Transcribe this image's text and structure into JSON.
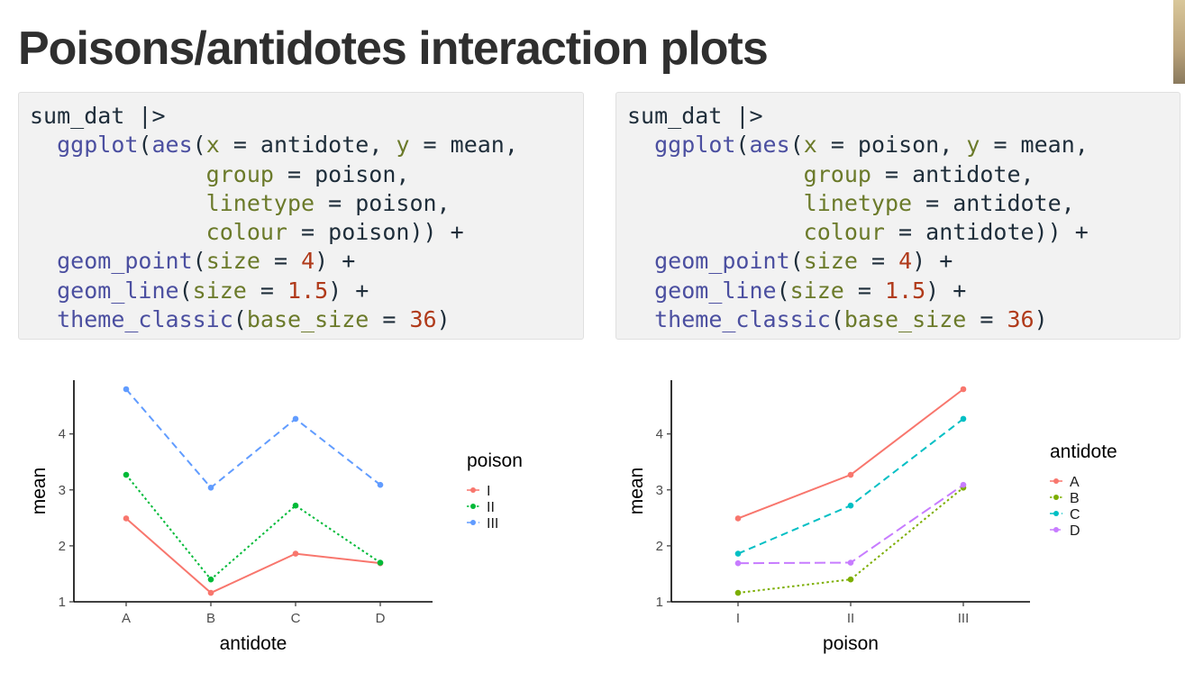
{
  "slide": {
    "title": "Poisons/antidotes interaction plots"
  },
  "code_blocks": [
    {
      "lines": [
        [
          {
            "t": "sum_dat |>",
            "c": "plain"
          }
        ],
        [
          {
            "t": "  ",
            "c": "plain"
          },
          {
            "t": "ggplot",
            "c": "fn"
          },
          {
            "t": "(",
            "c": "plain"
          },
          {
            "t": "aes",
            "c": "fn"
          },
          {
            "t": "(",
            "c": "plain"
          },
          {
            "t": "x",
            "c": "arg"
          },
          {
            "t": " = antidote, ",
            "c": "plain"
          },
          {
            "t": "y",
            "c": "arg"
          },
          {
            "t": " = mean,",
            "c": "plain"
          }
        ],
        [
          {
            "t": "             ",
            "c": "plain"
          },
          {
            "t": "group",
            "c": "arg"
          },
          {
            "t": " = poison,",
            "c": "plain"
          }
        ],
        [
          {
            "t": "             ",
            "c": "plain"
          },
          {
            "t": "linetype",
            "c": "arg"
          },
          {
            "t": " = poison,",
            "c": "plain"
          }
        ],
        [
          {
            "t": "             ",
            "c": "plain"
          },
          {
            "t": "colour",
            "c": "arg"
          },
          {
            "t": " = poison)) +",
            "c": "plain"
          }
        ],
        [
          {
            "t": "  ",
            "c": "plain"
          },
          {
            "t": "geom_point",
            "c": "fn"
          },
          {
            "t": "(",
            "c": "plain"
          },
          {
            "t": "size",
            "c": "arg"
          },
          {
            "t": " = ",
            "c": "plain"
          },
          {
            "t": "4",
            "c": "num"
          },
          {
            "t": ") +",
            "c": "plain"
          }
        ],
        [
          {
            "t": "  ",
            "c": "plain"
          },
          {
            "t": "geom_line",
            "c": "fn"
          },
          {
            "t": "(",
            "c": "plain"
          },
          {
            "t": "size",
            "c": "arg"
          },
          {
            "t": " = ",
            "c": "plain"
          },
          {
            "t": "1.5",
            "c": "num"
          },
          {
            "t": ") +",
            "c": "plain"
          }
        ],
        [
          {
            "t": "  ",
            "c": "plain"
          },
          {
            "t": "theme_classic",
            "c": "fn"
          },
          {
            "t": "(",
            "c": "plain"
          },
          {
            "t": "base_size",
            "c": "arg"
          },
          {
            "t": " = ",
            "c": "plain"
          },
          {
            "t": "36",
            "c": "num"
          },
          {
            "t": ")",
            "c": "plain"
          }
        ]
      ]
    },
    {
      "lines": [
        [
          {
            "t": "sum_dat |>",
            "c": "plain"
          }
        ],
        [
          {
            "t": "  ",
            "c": "plain"
          },
          {
            "t": "ggplot",
            "c": "fn"
          },
          {
            "t": "(",
            "c": "plain"
          },
          {
            "t": "aes",
            "c": "fn"
          },
          {
            "t": "(",
            "c": "plain"
          },
          {
            "t": "x",
            "c": "arg"
          },
          {
            "t": " = poison, ",
            "c": "plain"
          },
          {
            "t": "y",
            "c": "arg"
          },
          {
            "t": " = mean,",
            "c": "plain"
          }
        ],
        [
          {
            "t": "             ",
            "c": "plain"
          },
          {
            "t": "group",
            "c": "arg"
          },
          {
            "t": " = antidote,",
            "c": "plain"
          }
        ],
        [
          {
            "t": "             ",
            "c": "plain"
          },
          {
            "t": "linetype",
            "c": "arg"
          },
          {
            "t": " = antidote,",
            "c": "plain"
          }
        ],
        [
          {
            "t": "             ",
            "c": "plain"
          },
          {
            "t": "colour",
            "c": "arg"
          },
          {
            "t": " = antidote)) +",
            "c": "plain"
          }
        ],
        [
          {
            "t": "  ",
            "c": "plain"
          },
          {
            "t": "geom_point",
            "c": "fn"
          },
          {
            "t": "(",
            "c": "plain"
          },
          {
            "t": "size",
            "c": "arg"
          },
          {
            "t": " = ",
            "c": "plain"
          },
          {
            "t": "4",
            "c": "num"
          },
          {
            "t": ") +",
            "c": "plain"
          }
        ],
        [
          {
            "t": "  ",
            "c": "plain"
          },
          {
            "t": "geom_line",
            "c": "fn"
          },
          {
            "t": "(",
            "c": "plain"
          },
          {
            "t": "size",
            "c": "arg"
          },
          {
            "t": " = ",
            "c": "plain"
          },
          {
            "t": "1.5",
            "c": "num"
          },
          {
            "t": ") +",
            "c": "plain"
          }
        ],
        [
          {
            "t": "  ",
            "c": "plain"
          },
          {
            "t": "theme_classic",
            "c": "fn"
          },
          {
            "t": "(",
            "c": "plain"
          },
          {
            "t": "base_size",
            "c": "arg"
          },
          {
            "t": " = ",
            "c": "plain"
          },
          {
            "t": "36",
            "c": "num"
          },
          {
            "t": ")",
            "c": "plain"
          }
        ]
      ]
    }
  ],
  "chart_data": [
    {
      "type": "line",
      "categories": [
        "A",
        "B",
        "C",
        "D"
      ],
      "xlabel": "antidote",
      "ylabel": "mean",
      "ylim": [
        1,
        4.8
      ],
      "yticks": [
        1,
        2,
        3,
        4
      ],
      "legend_title": "poison",
      "legend_position": "right",
      "grid": false,
      "series": [
        {
          "name": "I",
          "values": [
            2.49,
            1.16,
            1.86,
            1.69
          ],
          "color": "#F8766D",
          "linetype": "solid"
        },
        {
          "name": "II",
          "values": [
            3.27,
            1.4,
            2.72,
            1.7
          ],
          "color": "#00BA38",
          "linetype": "dotted"
        },
        {
          "name": "III",
          "values": [
            4.8,
            3.04,
            4.27,
            3.09
          ],
          "color": "#619CFF",
          "linetype": "dashed"
        }
      ]
    },
    {
      "type": "line",
      "categories": [
        "I",
        "II",
        "III"
      ],
      "xlabel": "poison",
      "ylabel": "mean",
      "ylim": [
        1,
        4.8
      ],
      "yticks": [
        1,
        2,
        3,
        4
      ],
      "legend_title": "antidote",
      "legend_position": "right",
      "grid": false,
      "series": [
        {
          "name": "A",
          "values": [
            2.49,
            3.27,
            4.8
          ],
          "color": "#F8766D",
          "linetype": "solid"
        },
        {
          "name": "B",
          "values": [
            1.16,
            1.4,
            3.04
          ],
          "color": "#7CAE00",
          "linetype": "dotted"
        },
        {
          "name": "C",
          "values": [
            1.86,
            2.72,
            4.27
          ],
          "color": "#00BFC4",
          "linetype": "dashed"
        },
        {
          "name": "D",
          "values": [
            1.69,
            1.7,
            3.09
          ],
          "color": "#C77CFF",
          "linetype": "longdash"
        }
      ]
    }
  ]
}
